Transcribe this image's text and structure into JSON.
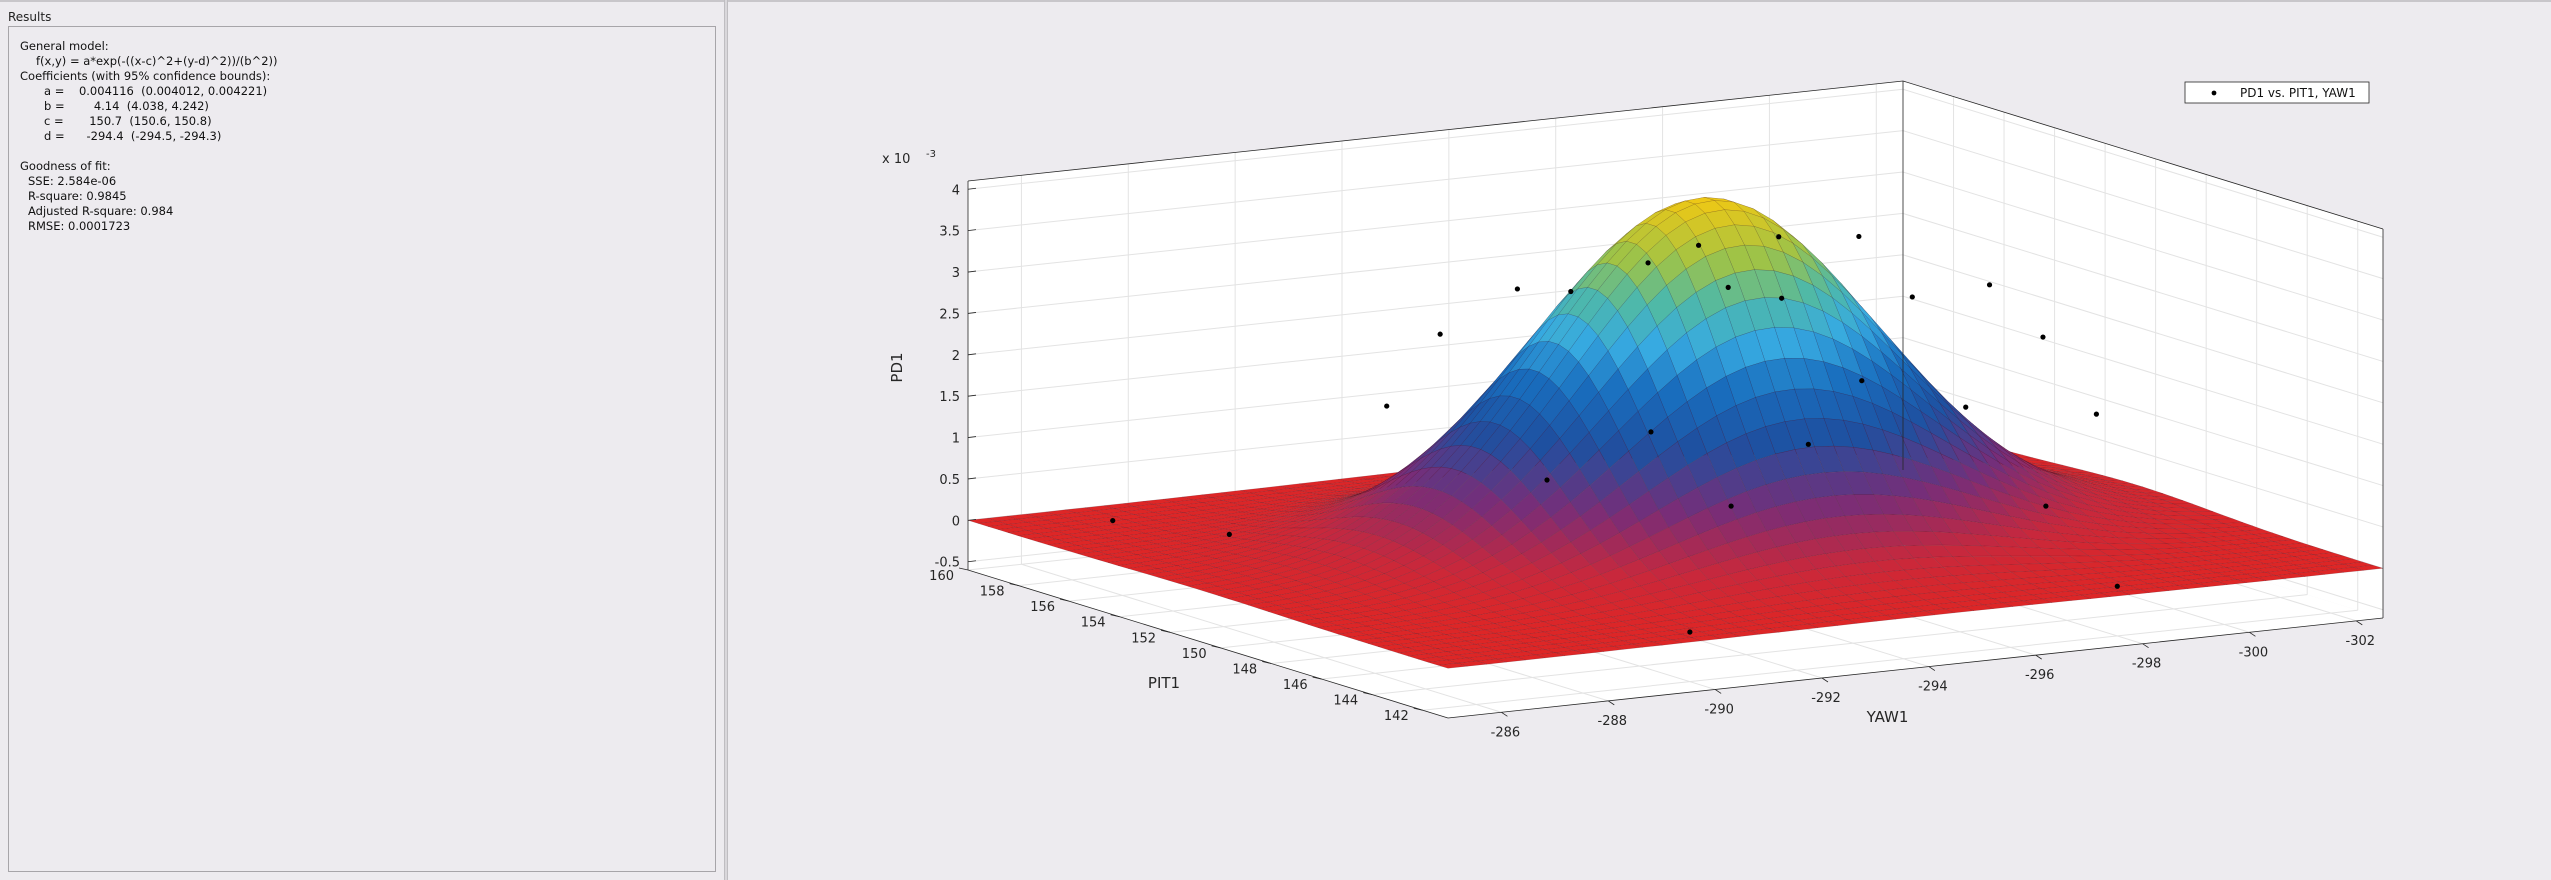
{
  "results": {
    "title": "Results",
    "lines": [
      {
        "text": "General model:",
        "indent": 0
      },
      {
        "text": "f(x,y) = a*exp(-((x-c)^2+(y-d)^2))/(b^2))",
        "indent": 2
      },
      {
        "text": "Coefficients (with 95% confidence bounds):",
        "indent": 0
      },
      {
        "text": "a =    0.004116  (0.004012, 0.004221)",
        "indent": 3
      },
      {
        "text": "b =        4.14  (4.038, 4.242)",
        "indent": 3
      },
      {
        "text": "c =       150.7  (150.6, 150.8)",
        "indent": 3
      },
      {
        "text": "d =      -294.4  (-294.5, -294.3)",
        "indent": 3
      },
      {
        "text": "",
        "indent": 0
      },
      {
        "text": "Goodness of fit:",
        "indent": 0
      },
      {
        "text": "SSE: 2.584e-06",
        "indent": 1
      },
      {
        "text": "R-square: 0.9845",
        "indent": 1
      },
      {
        "text": "Adjusted R-square: 0.984",
        "indent": 1
      },
      {
        "text": "RMSE: 0.0001723",
        "indent": 1
      }
    ]
  },
  "chart_data": {
    "type": "surface",
    "title": "",
    "model": {
      "a": 0.004116,
      "b": 4.14,
      "c": 150.7,
      "d": -294.4
    },
    "x_variable": "PIT1",
    "y_variable": "YAW1",
    "xlabel": "PIT1",
    "ylabel": "YAW1",
    "zlabel": "PD1",
    "z_exponent_label": "x 10",
    "z_exponent": "-3",
    "xlim": [
      141,
      160
    ],
    "ylim": [
      -285,
      -302.5
    ],
    "zlim": [
      -0.0006,
      0.0041
    ],
    "x_ticks": [
      "160",
      "158",
      "156",
      "154",
      "152",
      "150",
      "148",
      "146",
      "144",
      "142"
    ],
    "x_tick_values": [
      160,
      158,
      156,
      154,
      152,
      150,
      148,
      146,
      144,
      142
    ],
    "y_ticks": [
      "-286",
      "-288",
      "-290",
      "-292",
      "-294",
      "-296",
      "-298",
      "-300",
      "-302"
    ],
    "y_tick_values": [
      -286,
      -288,
      -290,
      -292,
      -294,
      -296,
      -298,
      -300,
      -302
    ],
    "z_ticks": [
      "4",
      "3.5",
      "3",
      "2.5",
      "2",
      "1.5",
      "1",
      "0.5",
      "0",
      "-0.5"
    ],
    "z_tick_values": [
      0.004,
      0.0035,
      0.003,
      0.0025,
      0.002,
      0.0015,
      0.001,
      0.0005,
      0,
      -0.0005
    ],
    "grid": true,
    "legend": {
      "label": "PD1 vs. PIT1, YAW1",
      "placement": "top-right"
    },
    "points": [
      {
        "x": 158.5,
        "y": -287.0,
        "z": 0.0
      },
      {
        "x": 156.0,
        "y": -288.0,
        "z": 0.0
      },
      {
        "x": 142.0,
        "y": -290.0,
        "z": 0.0
      },
      {
        "x": 142.0,
        "y": -298.0,
        "z": 0.0
      },
      {
        "x": 154.0,
        "y": -290.0,
        "z": 0.0016
      },
      {
        "x": 154.0,
        "y": -291.0,
        "z": 0.0024
      },
      {
        "x": 152.0,
        "y": -291.5,
        "z": 0.0031
      },
      {
        "x": 152.0,
        "y": -292.5,
        "z": 0.003
      },
      {
        "x": 150.0,
        "y": -293.0,
        "z": 0.0035
      },
      {
        "x": 148.0,
        "y": -293.0,
        "z": 0.0039
      },
      {
        "x": 148.0,
        "y": -294.5,
        "z": 0.0039
      },
      {
        "x": 148.0,
        "y": -296.0,
        "z": 0.0038
      },
      {
        "x": 150.0,
        "y": -294.5,
        "z": 0.0031
      },
      {
        "x": 150.0,
        "y": -295.5,
        "z": 0.0029
      },
      {
        "x": 148.0,
        "y": -297.0,
        "z": 0.003
      },
      {
        "x": 146.0,
        "y": -297.5,
        "z": 0.0033
      },
      {
        "x": 146.0,
        "y": -298.5,
        "z": 0.0026
      },
      {
        "x": 150.0,
        "y": -297.0,
        "z": 0.0018
      },
      {
        "x": 148.0,
        "y": -298.0,
        "z": 0.0016
      },
      {
        "x": 146.0,
        "y": -299.5,
        "z": 0.0016
      },
      {
        "x": 152.0,
        "y": -294.0,
        "z": 0.0012
      },
      {
        "x": 150.0,
        "y": -296.0,
        "z": 0.0011
      },
      {
        "x": 154.0,
        "y": -293.0,
        "z": 0.0005
      },
      {
        "x": 152.0,
        "y": -295.5,
        "z": 0.0002
      },
      {
        "x": 148.0,
        "y": -299.5,
        "z": 0.0003
      }
    ]
  }
}
